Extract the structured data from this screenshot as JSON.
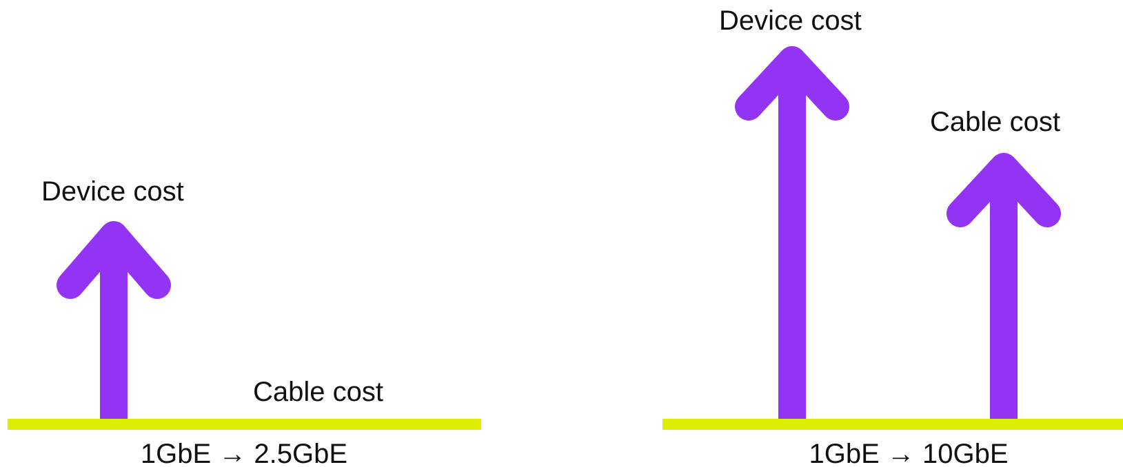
{
  "colors": {
    "arrow": "#9333F4",
    "baseline": "#DDEE00",
    "text": "#111111",
    "background": "#FFFFFF"
  },
  "panels": [
    {
      "caption": "1GbE → 2.5GbE",
      "device_label": "Device cost",
      "cable_label": "Cable cost",
      "device_increase": "arrow-up",
      "cable_increase": "none"
    },
    {
      "caption": "1GbE → 10GbE",
      "device_label": "Device cost",
      "cable_label": "Cable cost",
      "device_increase": "arrow-up-large",
      "cable_increase": "arrow-up"
    }
  ]
}
